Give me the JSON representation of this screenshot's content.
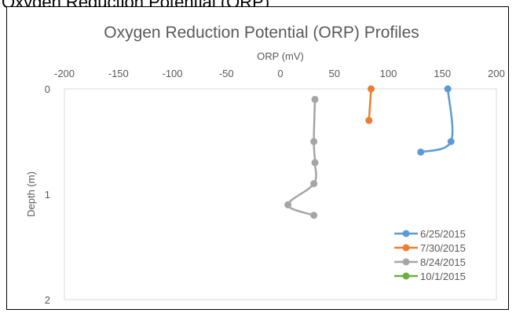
{
  "heading_fragment": "Oxygen Reduction Potential (ORP)",
  "chart_data": {
    "type": "line",
    "title": "Oxygen Reduction Potential (ORP) Profiles",
    "xlabel": "ORP (mV)",
    "ylabel": "Depth (m)",
    "xlim": [
      -200,
      200
    ],
    "ylim": [
      0,
      2
    ],
    "y_inverted": true,
    "x_axis_position": "top",
    "x_ticks": [
      -200,
      -150,
      -100,
      -50,
      0,
      50,
      100,
      150,
      200
    ],
    "y_ticks": [
      0,
      1,
      2
    ],
    "grid": false,
    "legend_position": "bottom-right",
    "series": [
      {
        "name": "6/25/2015",
        "color": "#5B9BD5",
        "points": [
          [
            155,
            0
          ],
          [
            158,
            0.5
          ],
          [
            130,
            0.6
          ]
        ]
      },
      {
        "name": "7/30/2015",
        "color": "#ED7D31",
        "points": [
          [
            84,
            0
          ],
          [
            82,
            0.3
          ]
        ]
      },
      {
        "name": "8/24/2015",
        "color": "#A5A5A5",
        "points": [
          [
            32,
            0.1
          ],
          [
            31,
            0.5
          ],
          [
            32,
            0.7
          ],
          [
            31,
            0.9
          ],
          [
            7,
            1.1
          ],
          [
            31,
            1.2
          ]
        ]
      },
      {
        "name": "10/1/2015",
        "color": "#70AD47",
        "points": []
      }
    ]
  }
}
